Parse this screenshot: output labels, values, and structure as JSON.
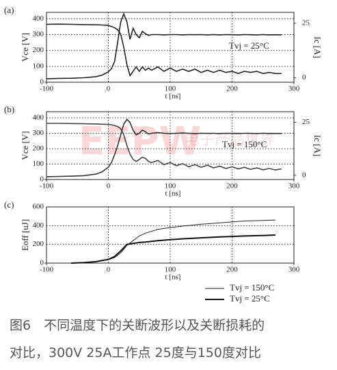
{
  "watermark": {
    "logo": "EEPW",
    "text": "电子产品世界"
  },
  "caption": {
    "line1": "图6　不同温度下的关断波形以及关断损耗的",
    "line2": "对比，300V 25A工作点 25度与150度对比"
  },
  "chart_data": [
    {
      "type": "line",
      "label": "(a)",
      "annotation": "Tvj = 25°C",
      "xlabel": "t [ns]",
      "ylabel": "Vce [V]",
      "y2label": "Ic [A]",
      "x": [
        -100,
        -80,
        -60,
        -40,
        -20,
        -10,
        0,
        5,
        10,
        15,
        20,
        25,
        30,
        35,
        40,
        45,
        50,
        55,
        60,
        65,
        70,
        80,
        90,
        100,
        110,
        120,
        130,
        140,
        150,
        160,
        170,
        180,
        190,
        200,
        210,
        220,
        230,
        240,
        250,
        260,
        270,
        280
      ],
      "series": [
        {
          "color": "#222",
          "values": [
            22,
            24,
            25,
            28,
            35,
            45,
            65,
            85,
            130,
            250,
            380,
            430,
            380,
            270,
            340,
            300,
            280,
            320,
            305,
            295,
            300,
            300,
            298,
            300,
            300,
            298,
            300,
            299,
            300,
            298,
            300,
            298,
            300,
            299,
            298,
            300,
            299,
            298,
            300,
            298,
            299,
            298
          ]
        },
        {
          "color": "#222",
          "axis": "y2",
          "values": [
            24.5,
            24.6,
            24.5,
            24.4,
            24.3,
            24.2,
            24,
            23.5,
            23,
            22,
            20,
            14,
            6,
            1,
            3,
            5,
            3,
            5,
            3.5,
            4.5,
            3.5,
            5,
            3,
            4.5,
            3,
            4,
            3,
            4,
            2.5,
            3.5,
            2.5,
            3.5,
            2.5,
            3,
            2,
            3,
            2.5,
            3,
            2,
            2.5,
            2,
            2
          ]
        }
      ],
      "xlim": [
        -100,
        300
      ],
      "xticks": [
        -100,
        0,
        100,
        200,
        300
      ],
      "ylim": [
        0,
        440
      ],
      "yticks": [
        0,
        100,
        200,
        300,
        400
      ],
      "y2lim": [
        -2,
        30
      ],
      "y2ticks": [
        0,
        25
      ],
      "grid": true
    },
    {
      "type": "line",
      "label": "(b)",
      "annotation": "Tvj = 150°C",
      "xlabel": "t [ns]",
      "ylabel": "Vce [V]",
      "y2label": "Ic [A]",
      "x": [
        -100,
        -80,
        -60,
        -40,
        -20,
        -10,
        0,
        5,
        10,
        15,
        20,
        25,
        30,
        35,
        40,
        45,
        50,
        55,
        60,
        65,
        70,
        80,
        90,
        100,
        110,
        120,
        130,
        140,
        150,
        160,
        170,
        180,
        190,
        200,
        210,
        220,
        230,
        240,
        250,
        260,
        270,
        280
      ],
      "series": [
        {
          "color": "#333",
          "values": [
            18,
            20,
            22,
            25,
            35,
            50,
            80,
            110,
            160,
            220,
            290,
            360,
            390,
            370,
            320,
            290,
            300,
            320,
            310,
            295,
            300,
            305,
            300,
            298,
            300,
            302,
            300,
            298,
            300,
            299,
            300,
            298,
            300,
            299,
            298,
            300,
            299,
            298,
            300,
            298,
            299,
            298
          ]
        },
        {
          "color": "#444",
          "axis": "y2",
          "values": [
            24.5,
            24.5,
            24.4,
            24.3,
            24.2,
            24.1,
            24,
            23.8,
            23.5,
            23,
            22,
            19,
            14,
            10,
            7.5,
            6.5,
            7.5,
            8.5,
            8,
            6.5,
            6,
            7,
            5,
            6,
            4.5,
            5.5,
            4,
            5,
            3.8,
            4.8,
            3.5,
            4.3,
            3.2,
            4,
            3,
            3.8,
            2.8,
            3.5,
            2.6,
            3.2,
            2.5,
            3
          ]
        }
      ],
      "xlim": [
        -100,
        300
      ],
      "xticks": [
        -100,
        0,
        100,
        200,
        300
      ],
      "ylim": [
        0,
        440
      ],
      "yticks": [
        0,
        100,
        200,
        300,
        400
      ],
      "y2lim": [
        -2,
        30
      ],
      "y2ticks": [
        0,
        25
      ],
      "grid": true
    },
    {
      "type": "line",
      "label": "(c)",
      "xlabel": "t [ns]",
      "ylabel": "Eoff [uJ]",
      "x": [
        -60,
        -40,
        -20,
        0,
        10,
        20,
        30,
        40,
        50,
        60,
        80,
        100,
        120,
        150,
        180,
        200,
        220,
        250,
        270
      ],
      "series": [
        {
          "name": "Tvj = 150°C",
          "color": "#222",
          "line_width": 1,
          "values": [
            0,
            5,
            15,
            35,
            60,
            110,
            190,
            240,
            290,
            320,
            360,
            380,
            395,
            415,
            430,
            440,
            450,
            455,
            460
          ]
        },
        {
          "name": "Tvj = 25°C",
          "color": "#111",
          "line_width": 2,
          "values": [
            0,
            5,
            15,
            40,
            70,
            130,
            200,
            210,
            220,
            225,
            240,
            250,
            260,
            270,
            280,
            285,
            290,
            295,
            300
          ]
        }
      ],
      "xlim": [
        -100,
        300
      ],
      "xticks": [
        -100,
        0,
        100,
        200,
        300
      ],
      "ylim": [
        0,
        600
      ],
      "yticks": [
        0,
        200,
        400,
        600
      ],
      "grid": true,
      "legend": "below right"
    }
  ]
}
